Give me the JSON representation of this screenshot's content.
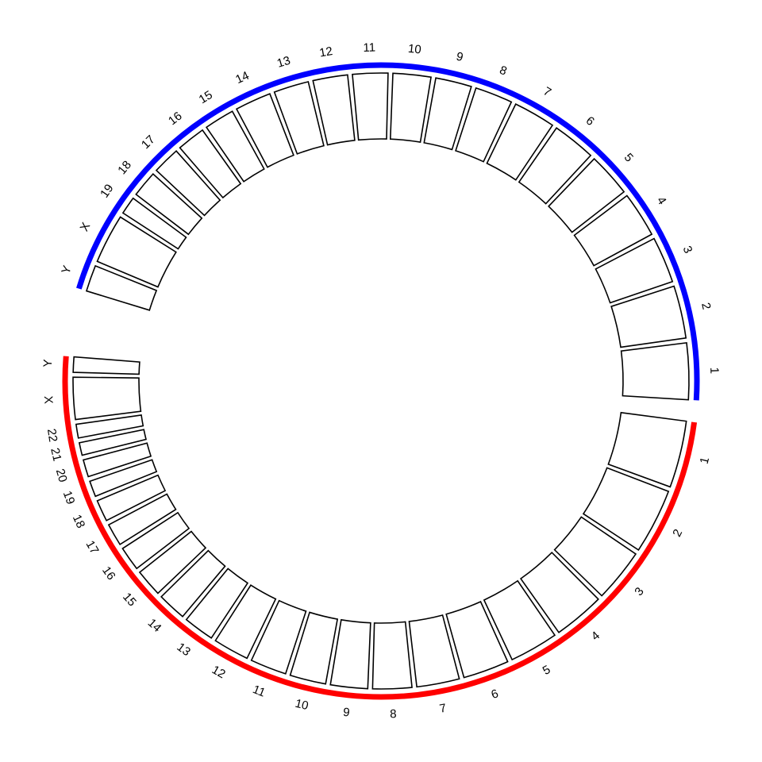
{
  "colors": {
    "top_genome": "#0000ff",
    "bottom_genome": "#ff0000"
  },
  "genomes": [
    {
      "id": "top",
      "color_key": "top_genome",
      "chromosomes": [
        "1",
        "2",
        "3",
        "4",
        "5",
        "6",
        "7",
        "8",
        "9",
        "10",
        "11",
        "12",
        "13",
        "14",
        "15",
        "16",
        "17",
        "18",
        "19",
        "X",
        "Y"
      ],
      "sizes": [
        195,
        182,
        160,
        157,
        152,
        150,
        145,
        130,
        125,
        131,
        122,
        120,
        121,
        125,
        104,
        98,
        95,
        91,
        61,
        171,
        91
      ]
    },
    {
      "id": "bottom",
      "color_key": "bottom_genome",
      "chromosomes": [
        "1",
        "2",
        "3",
        "4",
        "5",
        "6",
        "7",
        "8",
        "9",
        "10",
        "11",
        "12",
        "13",
        "14",
        "15",
        "16",
        "17",
        "18",
        "19",
        "20",
        "21",
        "22",
        "X",
        "Y"
      ],
      "sizes": [
        249,
        242,
        198,
        190,
        181,
        171,
        159,
        145,
        138,
        134,
        135,
        133,
        114,
        107,
        102,
        90,
        83,
        80,
        59,
        64,
        47,
        51,
        156,
        57
      ]
    }
  ]
}
